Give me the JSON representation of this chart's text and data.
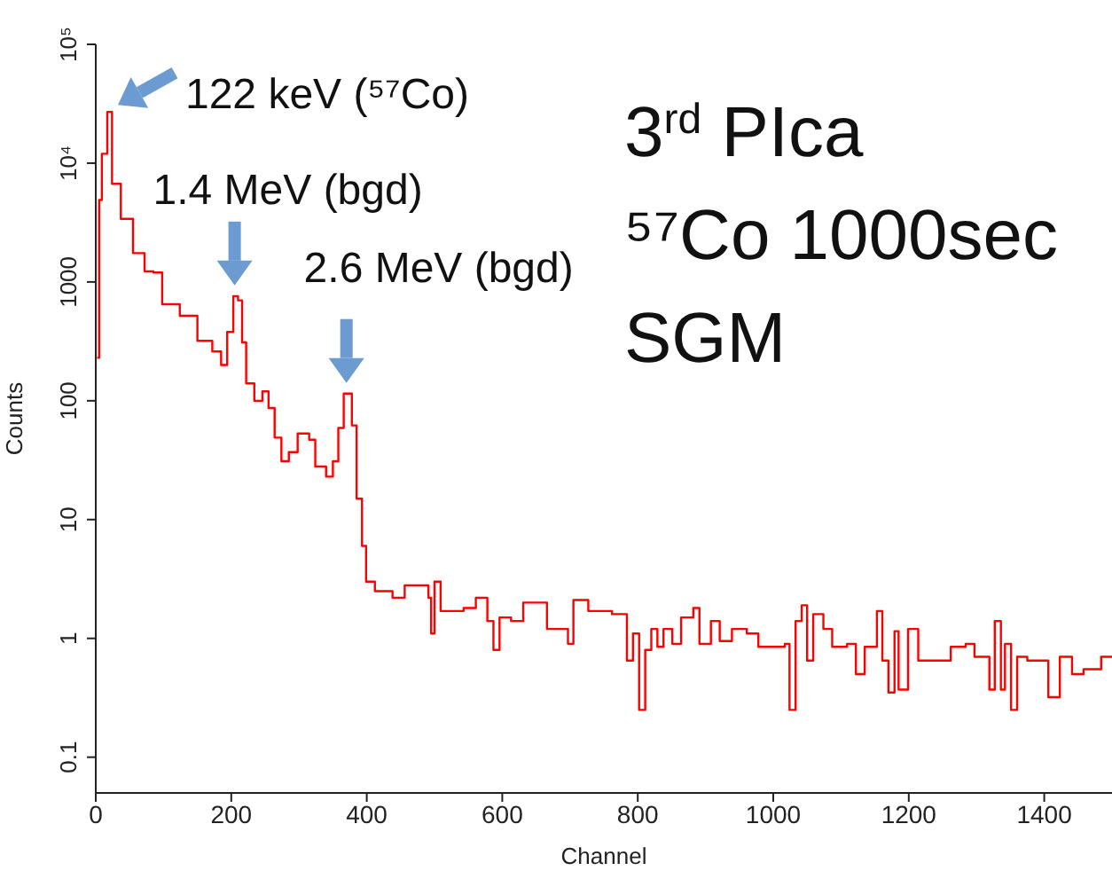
{
  "chart_data": {
    "type": "step",
    "xlabel": "Channel",
    "ylabel": "Counts",
    "log": "y",
    "xlim": [
      0,
      1500
    ],
    "xticks": [
      0,
      200,
      400,
      600,
      800,
      1000,
      1200,
      1400
    ],
    "ylim": [
      0.05,
      100000
    ],
    "yticks": [
      0.1,
      1,
      10,
      100,
      1000,
      {
        "value": 10000,
        "label": "10⁴"
      },
      {
        "value": 100000,
        "label": "10⁵"
      }
    ],
    "marker": "none",
    "line_style": "solid",
    "grid": false,
    "legend": false,
    "x": [
      2,
      5,
      9,
      17,
      24,
      37,
      55,
      72,
      85,
      98,
      124,
      150,
      172,
      185,
      194,
      203,
      210,
      216,
      222,
      234,
      246,
      255,
      264,
      274,
      285,
      298,
      315,
      324,
      340,
      350,
      358,
      366,
      378,
      385,
      393,
      399,
      412,
      438,
      456,
      491,
      495,
      500,
      509,
      543,
      561,
      578,
      587,
      596,
      613,
      631,
      666,
      697,
      705,
      727,
      762,
      784,
      793,
      802,
      811,
      820,
      829,
      838,
      851,
      864,
      882,
      891,
      908,
      921,
      939,
      961,
      978,
      1000,
      1017,
      1024,
      1033,
      1042,
      1050,
      1059,
      1074,
      1087,
      1109,
      1122,
      1135,
      1153,
      1161,
      1170,
      1179,
      1185,
      1199,
      1214,
      1244,
      1262,
      1284,
      1297,
      1319,
      1327,
      1336,
      1342,
      1351,
      1360,
      1375,
      1393,
      1406,
      1423,
      1441,
      1458,
      1484,
      1500
    ],
    "series": [
      {
        "color": "#ff0000",
        "values": [
          230,
          4900,
          12000,
          27000,
          6700,
          3400,
          1750,
          1230,
          1200,
          650,
          520,
          320,
          260,
          200,
          380,
          760,
          700,
          310,
          140,
          100,
          120,
          87,
          49,
          31,
          37,
          53,
          47,
          28,
          23,
          31,
          59,
          115,
          62,
          15,
          6,
          3,
          2.5,
          2.2,
          2.8,
          2.2,
          1.1,
          3,
          1.7,
          1.8,
          2.2,
          1.4,
          0.8,
          1.5,
          1.4,
          2,
          1.2,
          0.9,
          2.1,
          1.7,
          1.6,
          0.65,
          1.1,
          0.25,
          0.8,
          1.2,
          0.85,
          1.2,
          0.9,
          1.5,
          1.8,
          0.9,
          1.4,
          0.95,
          1.2,
          1.1,
          0.85,
          0.85,
          0.9,
          0.25,
          1.4,
          1.9,
          0.65,
          1.6,
          1.2,
          0.85,
          0.9,
          0.5,
          0.85,
          1.7,
          0.65,
          0.35,
          1.15,
          0.37,
          1.2,
          0.65,
          0.65,
          0.85,
          0.9,
          0.7,
          0.37,
          1.4,
          0.37,
          0.9,
          0.25,
          0.7,
          0.65,
          0.65,
          0.32,
          0.7,
          0.5,
          0.55,
          0.7,
          0.7
        ]
      }
    ],
    "annotations": [
      {
        "text": "122 keV (⁵⁷Co)",
        "x": 17,
        "y": 27000
      },
      {
        "text": "1.4 MeV (bgd)",
        "x": 205,
        "y": 760
      },
      {
        "text": "2.6 MeV (bgd)",
        "x": 370,
        "y": 115
      },
      "3$^{rd}$ PIca",
      "⁵⁷Co 1000sec",
      "SGM"
    ]
  }
}
